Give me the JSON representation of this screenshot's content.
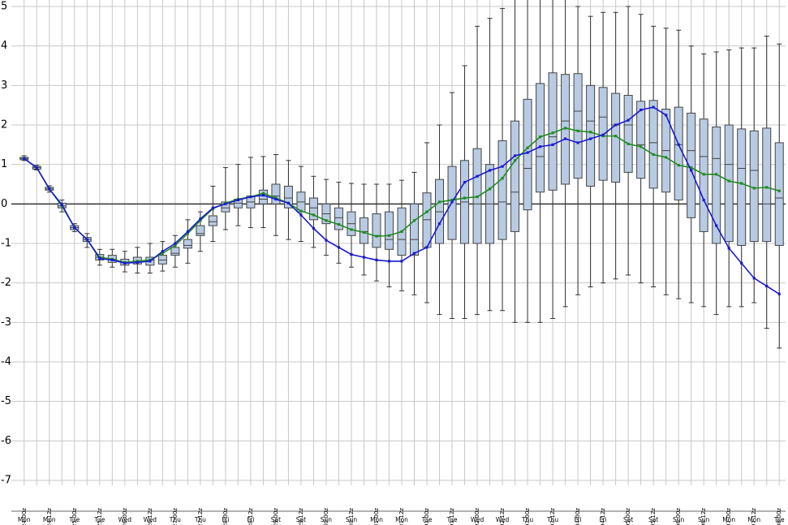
{
  "chart_data": {
    "type": "box",
    "categories": [
      "24-00z",
      null,
      "24-12z",
      null,
      "25-00z",
      null,
      "25-12z",
      null,
      "26-00z",
      null,
      "26-12z",
      null,
      "27-00z",
      null,
      "27-12z",
      null,
      "28-00z",
      null,
      "28-12z",
      null,
      "29-00z",
      null,
      "29-12z",
      null,
      "30-00z",
      null,
      "30-12z",
      null,
      "31-00z",
      null,
      "31-12z",
      null,
      "01-00z",
      null,
      "01-12z",
      null,
      "02-00z",
      null,
      "02-12z",
      null,
      "03-00z",
      null,
      "03-12z",
      null,
      "04-00z",
      null,
      "04-12z",
      null,
      "05-00z",
      null,
      "05-12z",
      null,
      "06-00z",
      null,
      "06-12z",
      null,
      "07-00z",
      null,
      "07-12z",
      null,
      "08-00z"
    ],
    "days": [
      "Mon",
      null,
      "Mon",
      null,
      "Tue",
      null,
      "Tue",
      null,
      "Wed",
      null,
      "Wed",
      null,
      "Thu",
      null,
      "Thu",
      null,
      "Fri",
      null,
      "Fri",
      null,
      "Sat",
      null,
      "Sat",
      null,
      "Sun",
      null,
      "Sun",
      null,
      "Mon",
      null,
      "Mon",
      null,
      "Tue",
      null,
      "Tue",
      null,
      "Wed",
      null,
      "Wed",
      null,
      "Thu",
      null,
      "Thu",
      null,
      "Fri",
      null,
      "Fri",
      null,
      "Sat",
      null,
      "Sat",
      null,
      "Sun",
      null,
      "Sun",
      null,
      "Mon",
      null,
      "Mon",
      null,
      "Tue"
    ],
    "box_color": "#b8cbe3",
    "boxes": [
      {
        "low": 1.1,
        "q1": 1.12,
        "median": 1.15,
        "q3": 1.18,
        "high": 1.22
      },
      {
        "low": 0.86,
        "q1": 0.88,
        "median": 0.92,
        "q3": 0.95,
        "high": 0.98
      },
      {
        "low": 0.3,
        "q1": 0.35,
        "median": 0.38,
        "q3": 0.42,
        "high": 0.46
      },
      {
        "low": -0.2,
        "q1": -0.1,
        "median": -0.05,
        "q3": 0.02,
        "high": 0.1
      },
      {
        "low": -0.7,
        "q1": -0.65,
        "median": -0.6,
        "q3": -0.55,
        "high": -0.5
      },
      {
        "low": -1.1,
        "q1": -0.95,
        "median": -0.9,
        "q3": -0.85,
        "high": -0.75
      },
      {
        "low": -1.55,
        "q1": -1.42,
        "median": -1.35,
        "q3": -1.28,
        "high": -1.15
      },
      {
        "low": -1.6,
        "q1": -1.48,
        "median": -1.4,
        "q3": -1.3,
        "high": -1.15
      },
      {
        "low": -1.72,
        "q1": -1.55,
        "median": -1.48,
        "q3": -1.4,
        "high": -1.2
      },
      {
        "low": -1.75,
        "q1": -1.52,
        "median": -1.45,
        "q3": -1.35,
        "high": -1.1
      },
      {
        "low": -1.75,
        "q1": -1.55,
        "median": -1.42,
        "q3": -1.35,
        "high": -1.0
      },
      {
        "low": -1.7,
        "q1": -1.52,
        "median": -1.42,
        "q3": -1.3,
        "high": -0.95
      },
      {
        "low": -1.6,
        "q1": -1.3,
        "median": -1.25,
        "q3": -1.1,
        "high": -0.8
      },
      {
        "low": -1.5,
        "q1": -1.12,
        "median": -1.05,
        "q3": -0.9,
        "high": -0.4
      },
      {
        "low": -1.2,
        "q1": -0.8,
        "median": -0.75,
        "q3": -0.55,
        "high": -0.2
      },
      {
        "low": -0.95,
        "q1": -0.55,
        "median": -0.45,
        "q3": -0.3,
        "high": 0.45
      },
      {
        "low": -0.65,
        "q1": -0.2,
        "median": -0.1,
        "q3": 0.05,
        "high": 0.92
      },
      {
        "low": -0.55,
        "q1": -0.1,
        "median": 0.02,
        "q3": 0.12,
        "high": 1.0
      },
      {
        "low": -0.6,
        "q1": -0.1,
        "median": 0.05,
        "q3": 0.2,
        "high": 1.18
      },
      {
        "low": -0.6,
        "q1": 0,
        "median": 0.12,
        "q3": 0.35,
        "high": 1.2
      },
      {
        "low": -0.8,
        "q1": 0,
        "median": 0.2,
        "q3": 0.5,
        "high": 1.25
      },
      {
        "low": -0.9,
        "q1": -0.1,
        "median": 0.15,
        "q3": 0.45,
        "high": 1.1
      },
      {
        "low": -0.95,
        "q1": -0.2,
        "median": 0.05,
        "q3": 0.3,
        "high": 0.95
      },
      {
        "low": -1.1,
        "q1": -0.4,
        "median": -0.1,
        "q3": 0.15,
        "high": 0.7
      },
      {
        "low": -1.3,
        "q1": -0.5,
        "median": -0.25,
        "q3": 0,
        "high": 0.62
      },
      {
        "low": -1.5,
        "q1": -0.65,
        "median": -0.35,
        "q3": -0.1,
        "high": 0.55
      },
      {
        "low": -1.6,
        "q1": -0.8,
        "median": -0.5,
        "q3": -0.2,
        "high": 0.52
      },
      {
        "low": -1.8,
        "q1": -1.0,
        "median": -0.7,
        "q3": -0.35,
        "high": 0.5
      },
      {
        "low": -1.95,
        "q1": -1.1,
        "median": -0.8,
        "q3": -0.25,
        "high": 0.5
      },
      {
        "low": -2.1,
        "q1": -1.15,
        "median": -0.9,
        "q3": -0.2,
        "high": 0.5
      },
      {
        "low": -2.2,
        "q1": -1.3,
        "median": -0.9,
        "q3": -0.1,
        "high": 0.6
      },
      {
        "low": -2.3,
        "q1": -1.3,
        "median": -0.9,
        "q3": 0,
        "high": 0.8
      },
      {
        "low": -2.5,
        "q1": -1.1,
        "median": -0.4,
        "q3": 0.28,
        "high": 1.55
      },
      {
        "low": -2.8,
        "q1": -1.0,
        "median": -0.2,
        "q3": 0.62,
        "high": 2.0
      },
      {
        "low": -2.9,
        "q1": -0.9,
        "median": 0.1,
        "q3": 0.95,
        "high": 2.82
      },
      {
        "low": -2.9,
        "q1": -1.0,
        "median": 0.05,
        "q3": 1.1,
        "high": 3.5
      },
      {
        "low": -2.8,
        "q1": -1.0,
        "median": 0,
        "q3": 1.4,
        "high": 4.5
      },
      {
        "low": -2.7,
        "q1": -1.0,
        "median": 0,
        "q3": 1.0,
        "high": 4.7
      },
      {
        "low": -2.7,
        "q1": -0.9,
        "median": 0.05,
        "q3": 1.6,
        "high": 4.95
      },
      {
        "low": -3.0,
        "q1": -0.7,
        "median": 0.3,
        "q3": 2.1,
        "high": 5.2
      },
      {
        "low": -3.0,
        "q1": -0.15,
        "median": 0.9,
        "q3": 2.65,
        "high": 5.5
      },
      {
        "low": -3.0,
        "q1": 0.3,
        "median": 1.2,
        "q3": 3.05,
        "high": 5.5
      },
      {
        "low": -2.9,
        "q1": 0.35,
        "median": 1.7,
        "q3": 3.32,
        "high": 5.5
      },
      {
        "low": -2.6,
        "q1": 0.5,
        "median": 2.1,
        "q3": 3.28,
        "high": 5.4
      },
      {
        "low": -2.3,
        "q1": 0.65,
        "median": 2.35,
        "q3": 3.3,
        "high": 5.0
      },
      {
        "low": -2.1,
        "q1": 0.45,
        "median": 2.1,
        "q3": 3.0,
        "high": 4.75
      },
      {
        "low": -2.0,
        "q1": 0.6,
        "median": 2.2,
        "q3": 2.95,
        "high": 4.85
      },
      {
        "low": -1.9,
        "q1": 0.55,
        "median": 2.0,
        "q3": 2.8,
        "high": 4.85
      },
      {
        "low": -1.8,
        "q1": 0.8,
        "median": 2.0,
        "q3": 2.75,
        "high": 5.0
      },
      {
        "low": -2.0,
        "q1": 0.65,
        "median": 1.5,
        "q3": 2.6,
        "high": 4.8
      },
      {
        "low": -2.1,
        "q1": 0.4,
        "median": 1.55,
        "q3": 2.62,
        "high": 4.5
      },
      {
        "low": -2.3,
        "q1": 0.3,
        "median": 1.35,
        "q3": 2.4,
        "high": 4.45
      },
      {
        "low": -2.4,
        "q1": 0.1,
        "median": 1.5,
        "q3": 2.45,
        "high": 4.4
      },
      {
        "low": -2.5,
        "q1": -0.35,
        "median": 1.35,
        "q3": 2.3,
        "high": 4.0
      },
      {
        "low": -2.6,
        "q1": -0.7,
        "median": 1.2,
        "q3": 2.15,
        "high": 3.8
      },
      {
        "low": -2.8,
        "q1": -1.0,
        "median": 1.15,
        "q3": 1.95,
        "high": 3.85
      },
      {
        "low": -2.6,
        "q1": -0.95,
        "median": 1.0,
        "q3": 2.0,
        "high": 3.9
      },
      {
        "low": -2.6,
        "q1": -1.05,
        "median": 0.9,
        "q3": 1.9,
        "high": 3.95
      },
      {
        "low": -2.5,
        "q1": -0.95,
        "median": 0.85,
        "q3": 1.85,
        "high": 3.95
      },
      {
        "low": -3.15,
        "q1": -0.95,
        "median": 0,
        "q3": 1.92,
        "high": 4.25
      },
      {
        "low": -3.65,
        "q1": -1.05,
        "median": 0.15,
        "q3": 1.55,
        "high": 4.05
      }
    ],
    "series": [
      {
        "color": "#1f8c1f",
        "values": [
          1.15,
          0.92,
          0.38,
          -0.05,
          -0.6,
          -0.9,
          -1.35,
          -1.4,
          -1.48,
          -1.45,
          -1.42,
          -1.25,
          -1.05,
          -0.75,
          -0.42,
          -0.12,
          0.02,
          0.12,
          0.18,
          0.27,
          0.15,
          0.02,
          -0.18,
          -0.28,
          -0.42,
          -0.52,
          -0.65,
          -0.72,
          -0.82,
          -0.8,
          -0.7,
          -0.42,
          -0.2,
          0.05,
          0.1,
          0.15,
          0.18,
          0.38,
          0.65,
          1.1,
          1.42,
          1.7,
          1.8,
          1.92,
          1.85,
          1.82,
          1.72,
          1.72,
          1.52,
          1.45,
          1.25,
          1.18,
          0.98,
          0.92,
          0.75,
          0.75,
          0.58,
          0.52,
          0.4,
          0.42,
          0.33
        ]
      },
      {
        "color": "#1a1ad2",
        "values": [
          1.15,
          0.92,
          0.38,
          -0.02,
          -0.6,
          -0.9,
          -1.38,
          -1.42,
          -1.5,
          -1.48,
          -1.45,
          -1.2,
          -1.0,
          -0.7,
          -0.38,
          -0.1,
          0.0,
          0.1,
          0.18,
          0.22,
          0.12,
          0.02,
          -0.28,
          -0.62,
          -0.92,
          -1.1,
          -1.28,
          -1.35,
          -1.42,
          -1.45,
          -1.45,
          -1.25,
          -1.1,
          -0.5,
          0.05,
          0.55,
          0.7,
          0.85,
          0.95,
          1.22,
          1.3,
          1.45,
          1.5,
          1.65,
          1.55,
          1.65,
          1.75,
          2.0,
          2.12,
          2.38,
          2.45,
          2.25,
          1.5,
          0.85,
          0.1,
          -0.55,
          -1.12,
          -1.5,
          -1.88,
          -2.08,
          -2.28
        ]
      }
    ],
    "ylim": [
      -7,
      5
    ],
    "yticks": [
      -7,
      -6,
      -5,
      -4,
      -3,
      -2,
      -1,
      0,
      1,
      2,
      3,
      4,
      5
    ],
    "grid": true
  }
}
